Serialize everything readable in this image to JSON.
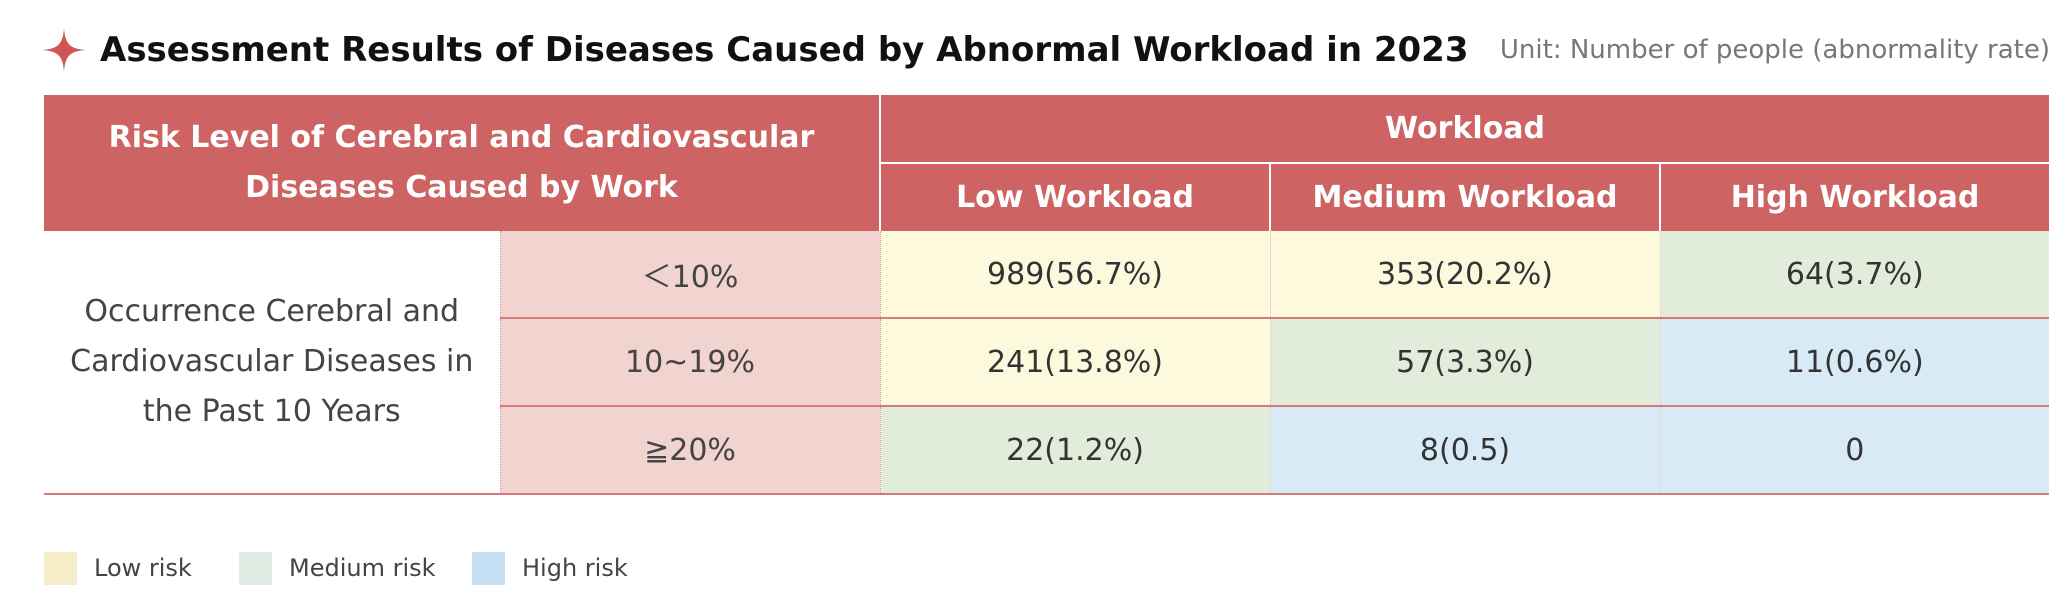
{
  "title": "Assessment Results of Diseases Caused by Abnormal Workload in 2023",
  "unit": "Unit: Number of people (abnormality rate)",
  "colors": {
    "header": "#cd6363",
    "range_bg": "#f1d3d0",
    "low_risk": "#fdf9dd",
    "medium_risk": "#e2ecdb",
    "high_risk": "#d9eaf7",
    "accent_star": "#d35454"
  },
  "chart_data": {
    "type": "table",
    "title": "Assessment Results of Diseases Caused by Abnormal Workload in 2023",
    "unit": "Unit: Number of people (abnormality rate)",
    "header": {
      "risk_level": "Risk Level of Cerebral and Cardiovascular Diseases Caused by Work",
      "workload": "Workload",
      "columns": [
        "Low Workload",
        "Medium Workload",
        "High Workload"
      ]
    },
    "row_group_label": "Occurrence Cerebral and Cardiovascular Diseases in the Past 10 Years",
    "rows": [
      {
        "range": "＜10%",
        "cells": [
          {
            "text": "989(56.7%)",
            "risk": "low"
          },
          {
            "text": "353(20.2%)",
            "risk": "low"
          },
          {
            "text": "64(3.7%)",
            "risk": "medium"
          }
        ]
      },
      {
        "range": "10~19%",
        "cells": [
          {
            "text": "241(13.8%)",
            "risk": "low"
          },
          {
            "text": "57(3.3%)",
            "risk": "medium"
          },
          {
            "text": "11(0.6%)",
            "risk": "high"
          }
        ]
      },
      {
        "range": "≧20%",
        "cells": [
          {
            "text": "22(1.2%)",
            "risk": "medium"
          },
          {
            "text": "8(0.5)",
            "risk": "high"
          },
          {
            "text": "0",
            "risk": "high"
          }
        ]
      }
    ],
    "legend": [
      {
        "label": "Low risk",
        "risk": "low"
      },
      {
        "label": "Medium risk",
        "risk": "medium"
      },
      {
        "label": "High risk",
        "risk": "high"
      }
    ]
  }
}
